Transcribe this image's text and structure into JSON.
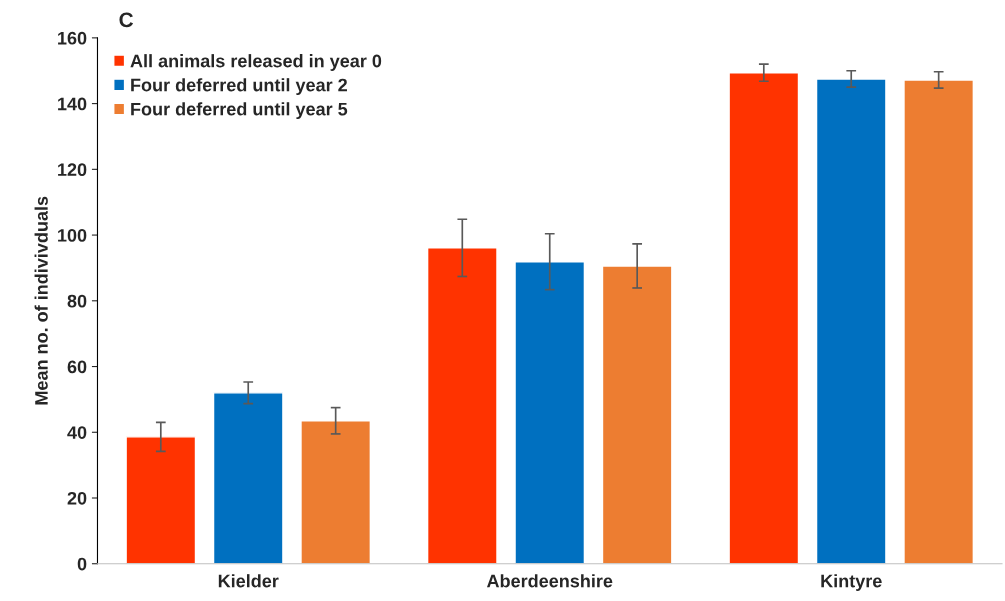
{
  "chart_data": {
    "type": "bar",
    "title": "C",
    "ylabel": "Mean no. of indivivduals",
    "categories": [
      "Kielder",
      "Aberdeenshire",
      "Kintyre"
    ],
    "series": [
      {
        "name": "All animals released in year 0",
        "color": "#ff3300",
        "values": [
          38.6,
          96.1,
          149.4
        ],
        "errors": [
          4.4,
          8.7,
          2.6
        ]
      },
      {
        "name": "Four deferred until year 2",
        "color": "#0070c0",
        "values": [
          52.0,
          91.9,
          147.5
        ],
        "errors": [
          3.3,
          8.5,
          2.5
        ]
      },
      {
        "name": "Four deferred until year 5",
        "color": "#ed7d31",
        "values": [
          43.5,
          90.6,
          147.2
        ],
        "errors": [
          4.0,
          6.7,
          2.5
        ]
      }
    ],
    "ylim": [
      0,
      160
    ],
    "yticks": [
      0,
      20,
      40,
      60,
      80,
      100,
      120,
      140,
      160
    ],
    "grid": false,
    "legend": "top left"
  }
}
